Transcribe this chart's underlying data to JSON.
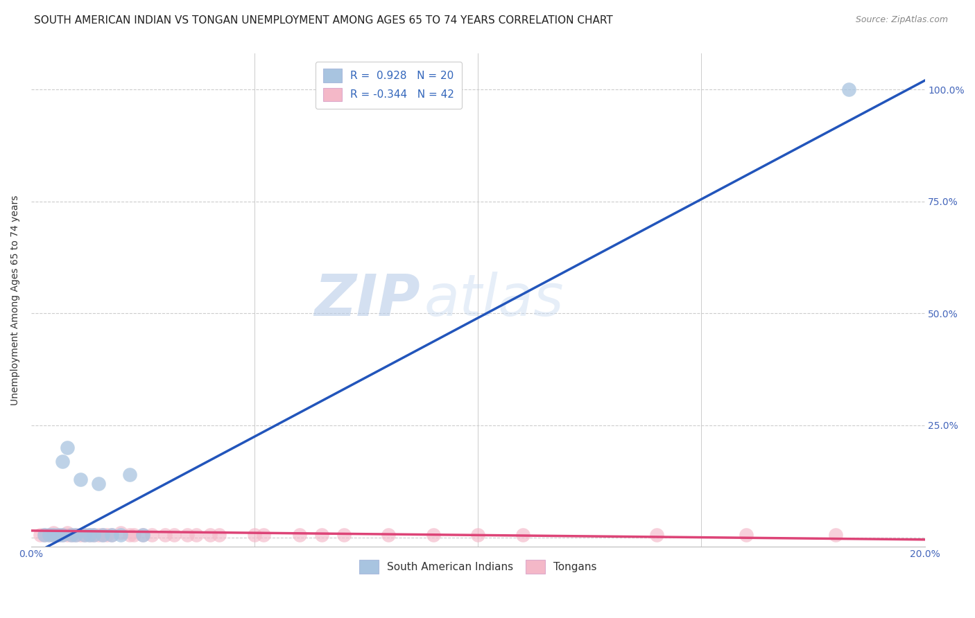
{
  "title": "SOUTH AMERICAN INDIAN VS TONGAN UNEMPLOYMENT AMONG AGES 65 TO 74 YEARS CORRELATION CHART",
  "source": "Source: ZipAtlas.com",
  "ylabel": "Unemployment Among Ages 65 to 74 years",
  "xlim": [
    0.0,
    0.2
  ],
  "ylim": [
    -0.02,
    1.08
  ],
  "xticks": [
    0.0,
    0.05,
    0.1,
    0.15,
    0.2
  ],
  "xticklabels": [
    "0.0%",
    "",
    "",
    "",
    "20.0%"
  ],
  "yticks": [
    0.0,
    0.25,
    0.5,
    0.75,
    1.0
  ],
  "yticklabels": [
    "",
    "25.0%",
    "50.0%",
    "75.0%",
    "100.0%"
  ],
  "blue_R": 0.928,
  "blue_N": 20,
  "pink_R": -0.344,
  "pink_N": 42,
  "blue_color": "#a8c4e0",
  "pink_color": "#f4b8c8",
  "blue_line_color": "#2255bb",
  "pink_line_color": "#dd4477",
  "blue_scatter_x": [
    0.003,
    0.005,
    0.006,
    0.007,
    0.008,
    0.009,
    0.01,
    0.011,
    0.012,
    0.014,
    0.015,
    0.016,
    0.018,
    0.02,
    0.022,
    0.025,
    0.004,
    0.007,
    0.013,
    0.183
  ],
  "blue_scatter_y": [
    0.005,
    0.005,
    0.005,
    0.005,
    0.2,
    0.005,
    0.005,
    0.13,
    0.005,
    0.005,
    0.12,
    0.005,
    0.005,
    0.005,
    0.14,
    0.005,
    0.005,
    0.17,
    0.005,
    1.0
  ],
  "pink_scatter_x": [
    0.002,
    0.003,
    0.004,
    0.005,
    0.005,
    0.006,
    0.007,
    0.008,
    0.008,
    0.009,
    0.01,
    0.011,
    0.012,
    0.013,
    0.014,
    0.015,
    0.016,
    0.017,
    0.018,
    0.02,
    0.022,
    0.023,
    0.025,
    0.027,
    0.03,
    0.032,
    0.035,
    0.037,
    0.04,
    0.042,
    0.05,
    0.052,
    0.06,
    0.065,
    0.07,
    0.08,
    0.09,
    0.1,
    0.11,
    0.14,
    0.16,
    0.18
  ],
  "pink_scatter_y": [
    0.005,
    0.005,
    0.005,
    0.01,
    0.005,
    0.005,
    0.005,
    0.01,
    0.005,
    0.005,
    0.005,
    0.005,
    0.005,
    0.005,
    0.005,
    0.005,
    0.005,
    0.005,
    0.005,
    0.01,
    0.005,
    0.005,
    0.005,
    0.005,
    0.005,
    0.005,
    0.005,
    0.005,
    0.005,
    0.005,
    0.005,
    0.005,
    0.005,
    0.005,
    0.005,
    0.005,
    0.005,
    0.005,
    0.005,
    0.005,
    0.005,
    0.005
  ],
  "blue_line_x0": 0.0,
  "blue_line_y0": -0.04,
  "blue_line_x1": 0.2,
  "blue_line_y1": 1.02,
  "pink_line_x0": 0.0,
  "pink_line_y0": 0.015,
  "pink_line_x1": 0.2,
  "pink_line_y1": -0.005,
  "watermark_zip": "ZIP",
  "watermark_atlas": "atlas",
  "background_color": "#ffffff",
  "grid_color": "#cccccc",
  "title_fontsize": 11,
  "axis_label_fontsize": 10,
  "tick_fontsize": 10,
  "legend_fontsize": 11
}
